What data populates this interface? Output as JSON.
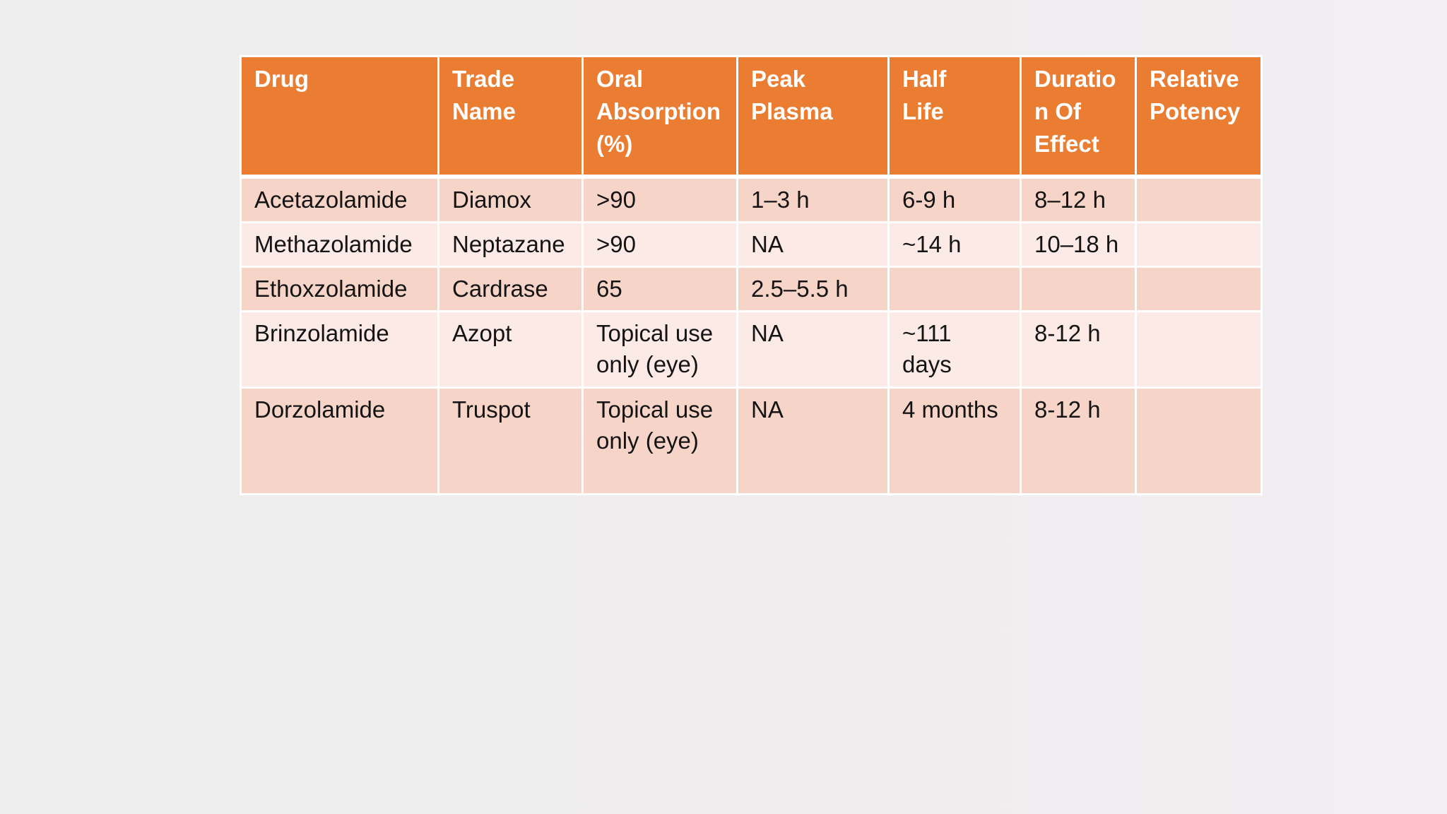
{
  "colors": {
    "header_bg": "#EB7D33",
    "header_text": "#FFFFFF",
    "row_band_dark": "#F6D4C8",
    "row_band_light": "#FCEAE6",
    "grid_line": "#FFFFFF",
    "page_background_left": "#EEEEEE",
    "page_background_right": "#F2EEF2",
    "body_text": "#141414"
  },
  "table": {
    "columns": [
      "Drug",
      "Trade\nName",
      "Oral\nAbsorption\n(%)",
      "Peak\nPlasma",
      "Half\nLife",
      "Duratio\nn Of\nEffect",
      "Relative\nPotency"
    ],
    "column_names_logical": [
      "Drug",
      "Trade Name",
      "Oral Absorption (%)",
      "Peak Plasma",
      "Half Life",
      "Duration Of Effect",
      "Relative Potency"
    ],
    "rows": [
      [
        "Acetazolamide",
        "Diamox",
        ">90",
        "1–3 h",
        "6-9 h",
        "8–12 h",
        ""
      ],
      [
        "Methazolamide",
        "Neptazane",
        ">90",
        "NA",
        "~14 h",
        "10–18 h",
        ""
      ],
      [
        "Ethoxzolamide",
        "Cardrase",
        "65",
        "2.5–5.5 h",
        "",
        "",
        ""
      ],
      [
        "Brinzolamide",
        "Azopt",
        "Topical use\nonly (eye)",
        "NA",
        "~111\ndays",
        "8-12 h",
        ""
      ],
      [
        "Dorzolamide",
        "Truspot",
        "Topical use\nonly (eye)",
        "NA",
        "4 months",
        "8-12 h",
        ""
      ]
    ]
  }
}
